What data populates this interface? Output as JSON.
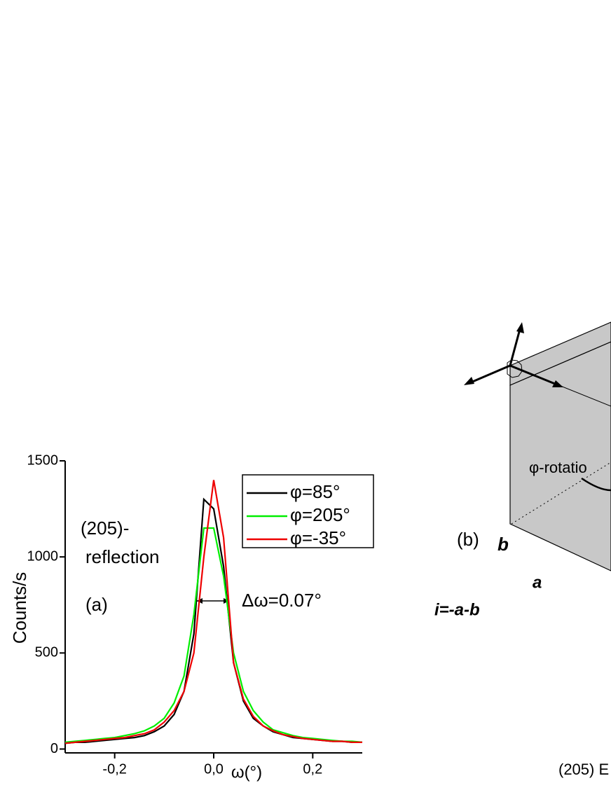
{
  "chart_data": {
    "type": "line",
    "x": [
      -0.3,
      -0.28,
      -0.26,
      -0.24,
      -0.22,
      -0.2,
      -0.18,
      -0.16,
      -0.14,
      -0.12,
      -0.1,
      -0.08,
      -0.06,
      -0.04,
      -0.02,
      0,
      0.02,
      0.04,
      0.06,
      0.08,
      0.1,
      0.12,
      0.14,
      0.16,
      0.18,
      0.2,
      0.22,
      0.24,
      0.26,
      0.28,
      0.3
    ],
    "series": [
      {
        "name": "φ=85°",
        "color": "#000000",
        "values": [
          30,
          35,
          35,
          40,
          45,
          50,
          55,
          60,
          70,
          90,
          120,
          180,
          300,
          600,
          1300,
          1250,
          950,
          450,
          250,
          160,
          120,
          90,
          75,
          60,
          55,
          50,
          45,
          40,
          40,
          35,
          35
        ]
      },
      {
        "name": "φ=205°",
        "color": "#00ee00",
        "values": [
          35,
          40,
          45,
          50,
          55,
          60,
          70,
          80,
          95,
          120,
          160,
          240,
          380,
          700,
          1150,
          1150,
          900,
          500,
          300,
          200,
          140,
          100,
          85,
          70,
          60,
          55,
          50,
          45,
          40,
          40,
          35
        ]
      },
      {
        "name": "φ=-35°",
        "color": "#ee0000",
        "values": [
          30,
          35,
          40,
          45,
          50,
          55,
          60,
          70,
          80,
          100,
          140,
          200,
          300,
          500,
          1000,
          1400,
          1100,
          450,
          260,
          170,
          120,
          95,
          75,
          65,
          55,
          50,
          45,
          40,
          40,
          35,
          35
        ]
      }
    ],
    "xlim": [
      -0.3,
      0.3
    ],
    "ylim": [
      -20,
      1500
    ],
    "xticks": [
      {
        "value": -0.2,
        "label": "-0,2"
      },
      {
        "value": 0,
        "label": "0,0"
      },
      {
        "value": 0.2,
        "label": "0,2"
      }
    ],
    "yticks": [
      0,
      500,
      1000,
      1500
    ],
    "x_label": "ω(°)",
    "y_label": "Counts/s",
    "annotations": [
      "(205)-",
      "reflection",
      "(a)",
      "Δω=0.07°"
    ],
    "legend": "upper right"
  },
  "diagram": {
    "rotation_label": "φ-rotatio",
    "panel_label": "(b)",
    "axis_b": "b",
    "axis_a": "a",
    "axis_i": "i=-a-b",
    "caption": "(205) E"
  }
}
